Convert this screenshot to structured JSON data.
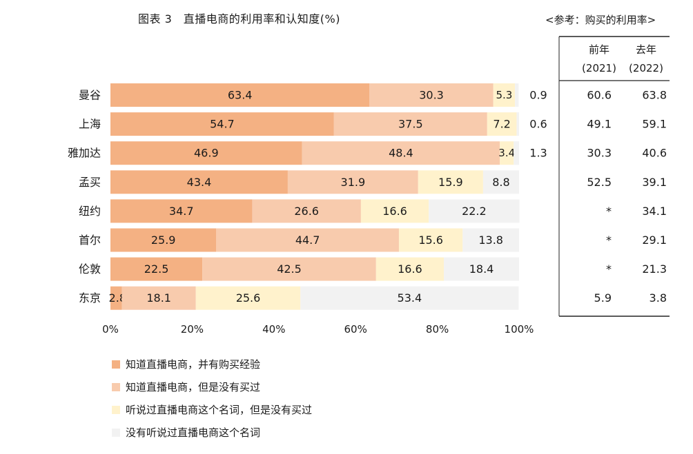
{
  "title": "图表 3　直播电商的利用率和认知度(%)",
  "reference": {
    "title": "<参考：购买的利用率>",
    "columns": [
      {
        "label": "前年",
        "year": "(2021)"
      },
      {
        "label": "去年",
        "year": "(2022)"
      }
    ],
    "rows": [
      [
        "60.6",
        "63.8"
      ],
      [
        "49.1",
        "59.1"
      ],
      [
        "30.3",
        "40.6"
      ],
      [
        "52.5",
        "39.1"
      ],
      [
        "*",
        "34.1"
      ],
      [
        "*",
        "29.1"
      ],
      [
        "*",
        "21.3"
      ],
      [
        "5.9",
        "3.8"
      ]
    ]
  },
  "colors": {
    "series": [
      "#f4b183",
      "#f8cbad",
      "#fff2cc",
      "#f2f2f2"
    ]
  },
  "chart_data": {
    "type": "bar",
    "orientation": "horizontal",
    "stacked": true,
    "categories": [
      "曼谷",
      "上海",
      "雅加达",
      "孟买",
      "纽约",
      "首尔",
      "伦敦",
      "东京"
    ],
    "series": [
      {
        "name": "知道直播电商，并有购买经验",
        "values": [
          63.4,
          54.7,
          46.9,
          43.4,
          34.7,
          25.9,
          22.5,
          2.8
        ]
      },
      {
        "name": "知道直播电商，但是没有买过",
        "values": [
          30.3,
          37.5,
          48.4,
          31.9,
          26.6,
          44.7,
          42.5,
          18.1
        ]
      },
      {
        "name": "听说过直播电商这个名词，但是没有买过",
        "values": [
          5.3,
          7.2,
          3.4,
          15.9,
          16.6,
          15.6,
          16.6,
          25.6
        ]
      },
      {
        "name": "没有听说过直播电商这个名词",
        "values": [
          0.9,
          0.6,
          1.3,
          8.8,
          22.2,
          13.8,
          18.4,
          53.4
        ]
      }
    ],
    "xlim": [
      0,
      100
    ],
    "xticks": [
      "0%",
      "20%",
      "40%",
      "60%",
      "80%",
      "100%"
    ],
    "legend_position": "bottom"
  }
}
